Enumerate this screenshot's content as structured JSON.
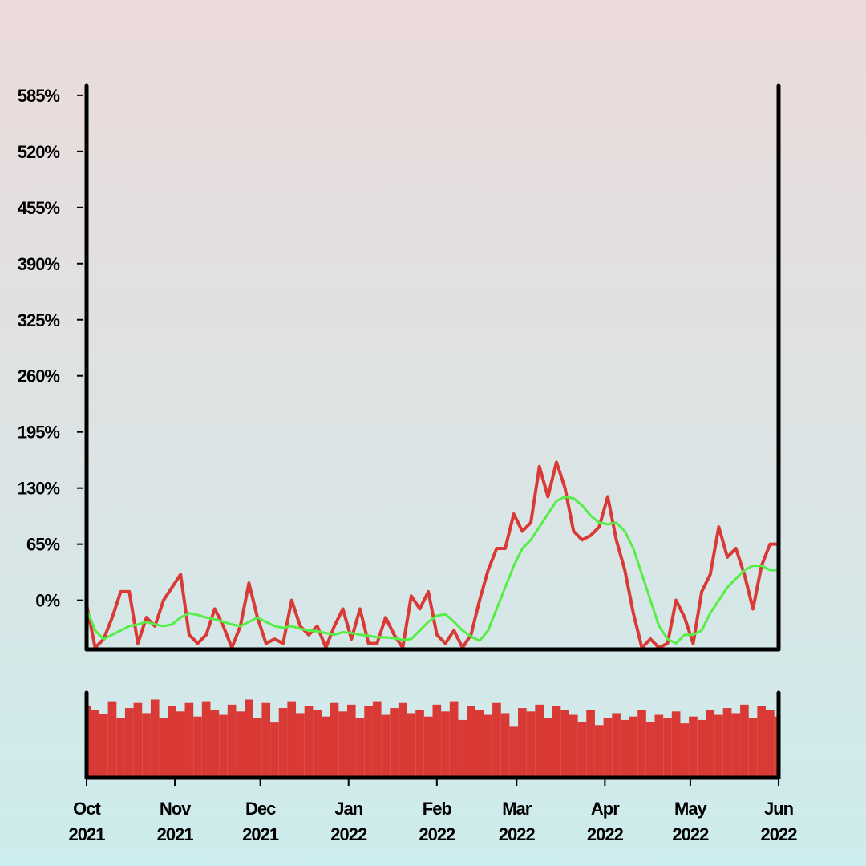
{
  "chart_data": {
    "type": "line",
    "x": [
      0,
      3,
      6,
      9,
      12,
      15,
      18,
      21,
      24,
      27,
      30,
      33,
      36,
      39,
      42,
      45,
      48,
      51,
      54,
      57,
      60,
      63,
      66,
      69,
      72,
      75,
      78,
      81,
      84,
      87,
      90,
      93,
      96,
      99,
      102,
      105,
      108,
      111,
      114,
      117,
      120,
      123,
      126,
      129,
      132,
      135,
      138,
      141,
      144,
      147,
      150,
      153,
      156,
      159,
      162,
      165,
      168,
      171,
      174,
      177,
      180,
      183,
      186,
      189,
      192,
      195,
      198,
      201,
      204,
      207,
      210,
      213,
      216,
      219,
      222,
      225,
      228,
      231,
      234,
      237,
      240,
      243
    ],
    "series": [
      {
        "color": "#d93a36",
        "values": [
          -5,
          -55,
          -45,
          -20,
          10,
          10,
          -50,
          -20,
          -30,
          0,
          15,
          30,
          -40,
          -50,
          -40,
          -10,
          -30,
          -55,
          -30,
          20,
          -20,
          -50,
          -45,
          -50,
          0,
          -30,
          -40,
          -30,
          -55,
          -30,
          -10,
          -45,
          -10,
          -50,
          -50,
          -20,
          -40,
          -55,
          5,
          -10,
          10,
          -40,
          -50,
          -35,
          -55,
          -40,
          0,
          35,
          60,
          60,
          100,
          80,
          90,
          155,
          120,
          160,
          130,
          80,
          70,
          75,
          85,
          120,
          70,
          35,
          -15,
          -55,
          -45,
          -55,
          -50,
          0,
          -20,
          -50,
          10,
          30,
          85,
          50,
          60,
          30,
          -10,
          40,
          65,
          65
        ]
      },
      {
        "color": "#55ee44",
        "values": [
          -10,
          -35,
          -45,
          -40,
          -35,
          -30,
          -28,
          -25,
          -28,
          -30,
          -28,
          -20,
          -15,
          -17,
          -20,
          -22,
          -25,
          -28,
          -30,
          -25,
          -20,
          -25,
          -30,
          -32,
          -30,
          -33,
          -35,
          -36,
          -38,
          -40,
          -37,
          -38,
          -40,
          -41,
          -43,
          -43,
          -44,
          -46,
          -45,
          -35,
          -25,
          -18,
          -16,
          -25,
          -35,
          -42,
          -47,
          -35,
          -10,
          15,
          40,
          60,
          70,
          85,
          100,
          115,
          120,
          118,
          110,
          98,
          90,
          88,
          90,
          80,
          60,
          30,
          0,
          -30,
          -45,
          -50,
          -40,
          -40,
          -35,
          -15,
          0,
          15,
          25,
          35,
          40,
          40,
          35,
          35
        ]
      }
    ],
    "volume": {
      "color": "#d93a36",
      "vlim": [
        0,
        100
      ],
      "values": [
        85,
        80,
        75,
        90,
        70,
        82,
        88,
        76,
        92,
        70,
        84,
        78,
        88,
        72,
        90,
        80,
        74,
        86,
        78,
        92,
        70,
        88,
        65,
        82,
        90,
        76,
        84,
        80,
        72,
        88,
        78,
        86,
        70,
        84,
        90,
        74,
        82,
        88,
        76,
        80,
        72,
        86,
        78,
        90,
        68,
        84,
        80,
        74,
        88,
        76,
        60,
        82,
        78,
        86,
        70,
        84,
        80,
        74,
        66,
        80,
        62,
        70,
        76,
        68,
        72,
        80,
        66,
        74,
        70,
        78,
        64,
        72,
        68,
        80,
        74,
        82,
        76,
        86,
        70,
        84,
        80,
        72
      ]
    },
    "xlim": [
      0,
      243
    ],
    "xticks": [
      {
        "value": 0,
        "label": "Oct 2021"
      },
      {
        "value": 31,
        "label": "Nov 2021"
      },
      {
        "value": 61,
        "label": "Dec 2021"
      },
      {
        "value": 92,
        "label": "Jan 2022"
      },
      {
        "value": 123,
        "label": "Feb 2022"
      },
      {
        "value": 151,
        "label": "Mar 2022"
      },
      {
        "value": 182,
        "label": "Apr 2022"
      },
      {
        "value": 212,
        "label": "May 2022"
      },
      {
        "value": 243,
        "label": "Jun 2022"
      }
    ],
    "ylim": [
      -57,
      596
    ],
    "yticks": [
      {
        "value": 0,
        "label": "0%"
      },
      {
        "value": 65,
        "label": "65%"
      },
      {
        "value": 130,
        "label": "130%"
      },
      {
        "value": 195,
        "label": "195%"
      },
      {
        "value": 260,
        "label": "260%"
      },
      {
        "value": 325,
        "label": "325%"
      },
      {
        "value": 390,
        "label": "390%"
      },
      {
        "value": 455,
        "label": "455%"
      },
      {
        "value": 520,
        "label": "520%"
      },
      {
        "value": 585,
        "label": "585%"
      }
    ]
  }
}
